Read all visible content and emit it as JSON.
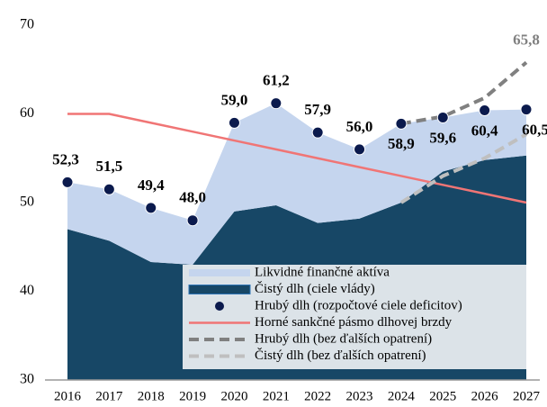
{
  "chart_data": {
    "type": "line",
    "categories": [
      "2016",
      "2017",
      "2018",
      "2019",
      "2020",
      "2021",
      "2022",
      "2023",
      "2024",
      "2025",
      "2026",
      "2027"
    ],
    "ylim": [
      30,
      70
    ],
    "yticks": [
      30,
      40,
      50,
      60,
      70
    ],
    "grid": false,
    "legend": "bottom",
    "series": [
      {
        "name": "Likvidné finančné aktíva",
        "type": "area",
        "color": "#c5d5ee",
        "values": [
          5.3,
          5.8,
          6.1,
          5.0,
          10.0,
          11.5,
          10.2,
          7.8,
          8.9,
          6.1,
          5.6,
          5.2
        ]
      },
      {
        "name": "Čistý dlh (ciele vlády)",
        "type": "area",
        "color": "#174766",
        "values": [
          47.0,
          45.7,
          43.3,
          43.0,
          49.0,
          49.7,
          47.7,
          48.2,
          50.0,
          53.5,
          54.8,
          55.3
        ]
      },
      {
        "name": "Hrubý dlh (rozpočtové ciele deficitov)",
        "type": "scatter",
        "color": "#0b1a4d",
        "values": [
          52.3,
          51.5,
          49.4,
          48.0,
          59.0,
          61.2,
          57.9,
          56.0,
          58.9,
          59.6,
          60.4,
          60.5
        ],
        "value_labels": [
          "52,3",
          "51,5",
          "49,4",
          "48,0",
          "59,0",
          "61,2",
          "57,9",
          "56,0",
          "58,9",
          "59,6",
          "60,4",
          "60,5"
        ]
      },
      {
        "name": "Horné sankčné pásmo dlhovej brzdy",
        "type": "line",
        "color": "#f07575",
        "values": [
          60,
          60,
          59,
          58,
          57,
          56,
          55,
          54,
          53,
          52,
          51,
          50
        ]
      },
      {
        "name": "Hrubý dlh (bez ďalších opatrení)",
        "type": "line",
        "dashed": true,
        "color": "#808080",
        "values": [
          null,
          null,
          null,
          null,
          null,
          null,
          null,
          null,
          58.9,
          59.7,
          61.8,
          65.8
        ],
        "value_labels": [
          null,
          null,
          null,
          null,
          null,
          null,
          null,
          null,
          null,
          null,
          null,
          "65,8"
        ]
      },
      {
        "name": "Čistý dlh (bez ďalších opatrení)",
        "type": "line",
        "dashed": true,
        "color": "#bfbfbf",
        "values": [
          null,
          null,
          null,
          null,
          null,
          null,
          null,
          null,
          50.0,
          53.0,
          55.0,
          57.7
        ]
      }
    ]
  }
}
